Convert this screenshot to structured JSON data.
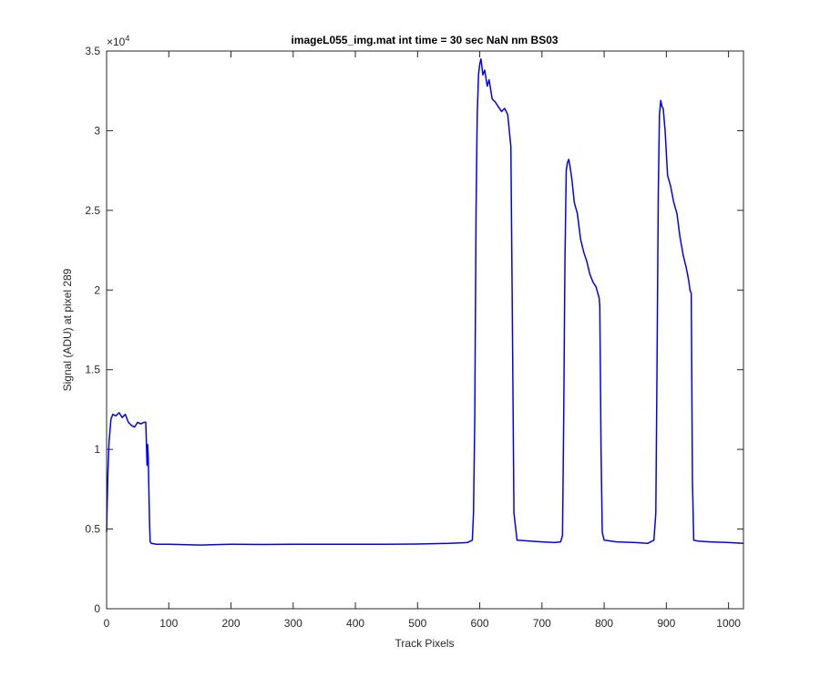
{
  "chart_data": {
    "type": "line",
    "title": "imageL055_img.mat int time = 30 sec  NaN nm BS03",
    "xlabel": "Track Pixels",
    "ylabel": "Signal (ADU) at pixel 289",
    "xlim": [
      0,
      1024
    ],
    "ylim": [
      0,
      35000
    ],
    "x_ticks": [
      0,
      100,
      200,
      300,
      400,
      500,
      600,
      700,
      800,
      900,
      1000
    ],
    "x_tick_labels": [
      "0",
      "100",
      "200",
      "300",
      "400",
      "500",
      "600",
      "700",
      "800",
      "900",
      "1000"
    ],
    "y_ticks": [
      0,
      5000,
      10000,
      15000,
      20000,
      25000,
      30000,
      35000
    ],
    "y_tick_labels": [
      "0",
      "0.5",
      "1",
      "1.5",
      "2",
      "2.5",
      "3",
      "3.5"
    ],
    "y_exponent": "×10",
    "y_exponent_power": "4",
    "grid": false,
    "series": [
      {
        "color": "#0000ff",
        "x": [
          0,
          2,
          4,
          7,
          10,
          15,
          20,
          25,
          30,
          35,
          40,
          45,
          50,
          55,
          60,
          63,
          65,
          66,
          67,
          68,
          69,
          70,
          72,
          80,
          100,
          150,
          200,
          250,
          300,
          350,
          400,
          450,
          500,
          550,
          580,
          588,
          590,
          592,
          594,
          596,
          598,
          600,
          602,
          605,
          608,
          612,
          615,
          620,
          625,
          630,
          635,
          640,
          645,
          650,
          652,
          655,
          660,
          680,
          700,
          720,
          730,
          733,
          735,
          737,
          739,
          741,
          743,
          745,
          748,
          752,
          757,
          762,
          767,
          772,
          777,
          782,
          787,
          792,
          793,
          795,
          797,
          800,
          820,
          850,
          870,
          880,
          883,
          885,
          887,
          889,
          891,
          893,
          895,
          898,
          902,
          907,
          912,
          917,
          922,
          927,
          932,
          936,
          938,
          940,
          942,
          944,
          950,
          970,
          1000,
          1024
        ],
        "y": [
          4800,
          8500,
          10500,
          11900,
          12200,
          12100,
          12300,
          12000,
          12200,
          11700,
          11500,
          11400,
          11700,
          11600,
          11700,
          11700,
          9000,
          10300,
          9500,
          7500,
          5500,
          4200,
          4100,
          4050,
          4050,
          4000,
          4050,
          4030,
          4050,
          4050,
          4050,
          4050,
          4060,
          4100,
          4150,
          4300,
          6000,
          12000,
          25000,
          31000,
          33500,
          34200,
          34500,
          33500,
          33800,
          32800,
          33200,
          32000,
          31800,
          31500,
          31200,
          31400,
          31000,
          29000,
          20000,
          6000,
          4300,
          4250,
          4200,
          4150,
          4200,
          4600,
          12000,
          22000,
          27500,
          28000,
          28200,
          27800,
          27000,
          25500,
          24800,
          23200,
          22400,
          21800,
          21000,
          20500,
          20200,
          19500,
          19000,
          10000,
          4800,
          4300,
          4200,
          4150,
          4100,
          4300,
          6000,
          15000,
          26000,
          31000,
          31900,
          31500,
          31400,
          30000,
          27200,
          26500,
          25500,
          24800,
          23300,
          22200,
          21400,
          20600,
          20000,
          19800,
          8000,
          4300,
          4250,
          4200,
          4150,
          4100
        ]
      }
    ]
  }
}
